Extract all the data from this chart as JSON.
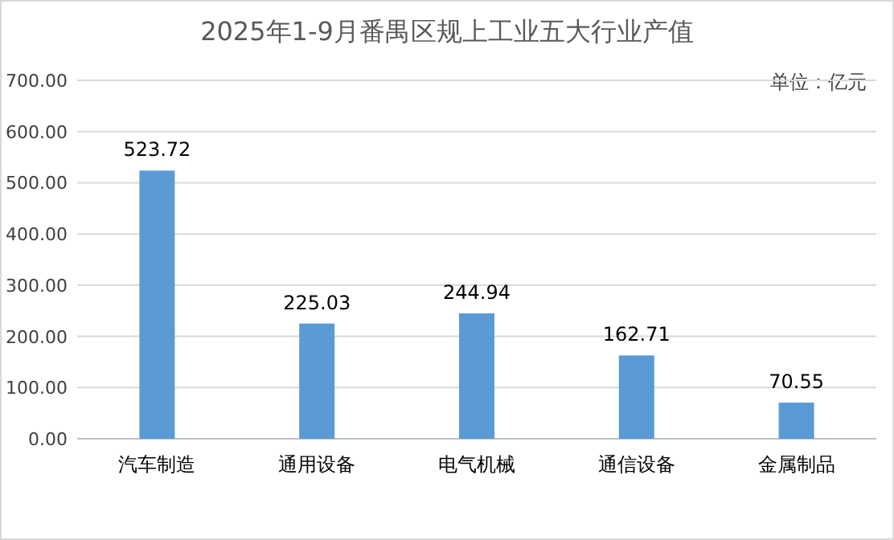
{
  "chart_data": {
    "type": "bar",
    "title": "2025年1-9月番禺区规上工业五大行业产值",
    "annotations": [
      "单位：亿元"
    ],
    "categories": [
      "汽车制造",
      "通用设备",
      "电气机械",
      "通信设备",
      "金属制品"
    ],
    "values": [
      523.72,
      225.03,
      244.94,
      162.71,
      70.55
    ],
    "color": "#5b9bd5",
    "data_labels": true,
    "grid": "y",
    "ylim": [
      0,
      700
    ],
    "yticks": [
      {
        "value": 0,
        "label": "0.00"
      },
      {
        "value": 100,
        "label": "100.00"
      },
      {
        "value": 200,
        "label": "200.00"
      },
      {
        "value": 300,
        "label": "300.00"
      },
      {
        "value": 400,
        "label": "400.00"
      },
      {
        "value": 500,
        "label": "500.00"
      },
      {
        "value": 600,
        "label": "600.00"
      },
      {
        "value": 700,
        "label": "700.00"
      }
    ]
  }
}
